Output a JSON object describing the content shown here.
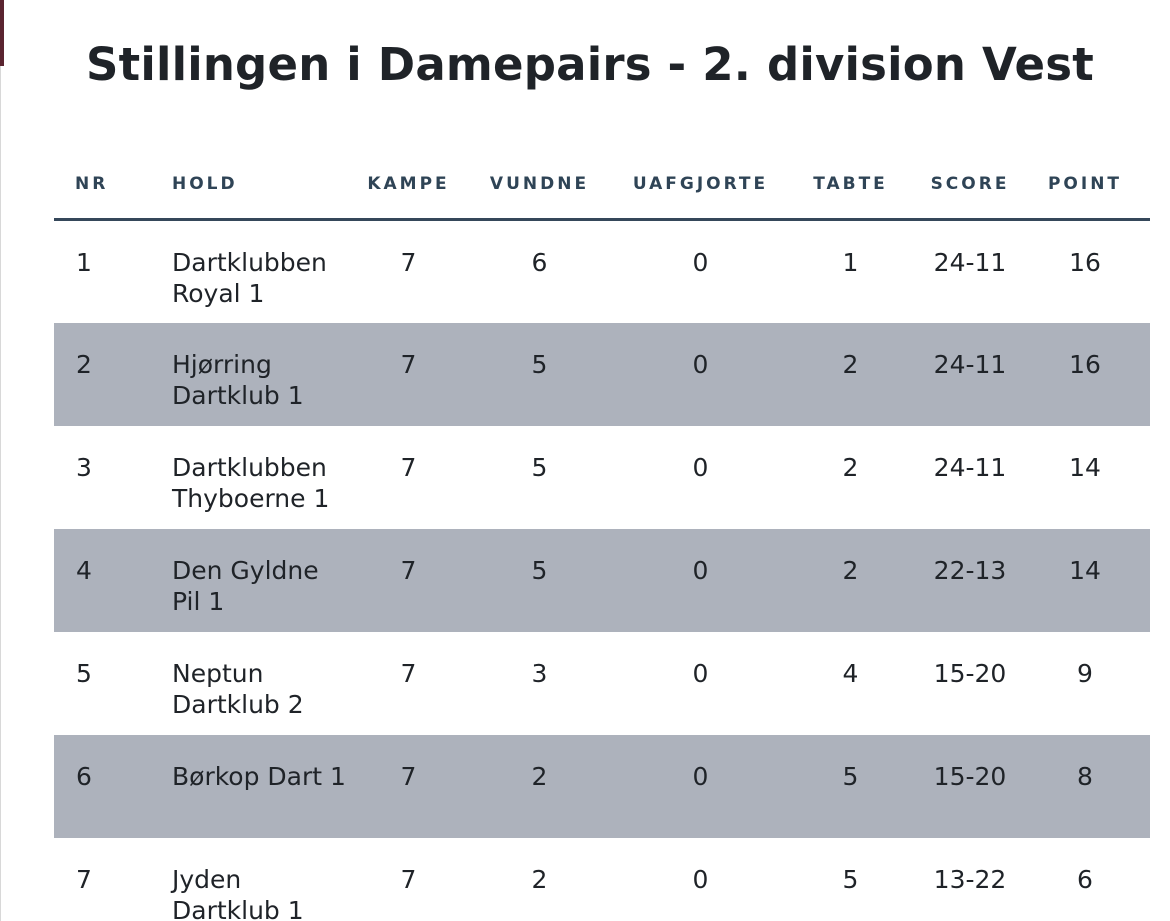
{
  "title": "Stillingen i Damepairs - 2. division Vest",
  "columns": {
    "nr": "NR",
    "hold": "HOLD",
    "kampe": "KAMPE",
    "vundne": "VUNDNE",
    "uafgjorte": "UAFGJORTE",
    "tabte": "TABTE",
    "score": "SCORE",
    "point": "POINT"
  },
  "rows": [
    {
      "nr": "1",
      "hold": "Dartklubben Royal 1",
      "kampe": "7",
      "vundne": "6",
      "uafgjorte": "0",
      "tabte": "1",
      "score": "24-11",
      "point": "16"
    },
    {
      "nr": "2",
      "hold": "Hjørring Dartklub 1",
      "kampe": "7",
      "vundne": "5",
      "uafgjorte": "0",
      "tabte": "2",
      "score": "24-11",
      "point": "16"
    },
    {
      "nr": "3",
      "hold": "Dartklubben Thyboerne 1",
      "kampe": "7",
      "vundne": "5",
      "uafgjorte": "0",
      "tabte": "2",
      "score": "24-11",
      "point": "14"
    },
    {
      "nr": "4",
      "hold": "Den Gyldne Pil 1",
      "kampe": "7",
      "vundne": "5",
      "uafgjorte": "0",
      "tabte": "2",
      "score": "22-13",
      "point": "14"
    },
    {
      "nr": "5",
      "hold": "Neptun Dartklub 2",
      "kampe": "7",
      "vundne": "3",
      "uafgjorte": "0",
      "tabte": "4",
      "score": "15-20",
      "point": "9"
    },
    {
      "nr": "6",
      "hold": "Børkop Dart 1",
      "kampe": "7",
      "vundne": "2",
      "uafgjorte": "0",
      "tabte": "5",
      "score": "15-20",
      "point": "8"
    },
    {
      "nr": "7",
      "hold": "Jyden Dartklub 1",
      "kampe": "7",
      "vundne": "2",
      "uafgjorte": "0",
      "tabte": "5",
      "score": "13-22",
      "point": "6"
    }
  ]
}
